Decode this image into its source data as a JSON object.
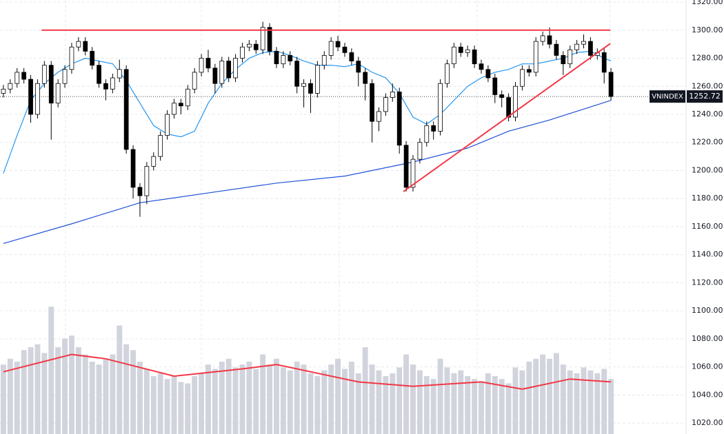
{
  "chart_data": {
    "type": "candlestick",
    "symbol": "VNINDEX",
    "open": [
      1255,
      1258,
      1262,
      1270,
      1265,
      1240,
      1262,
      1275,
      1248,
      1262,
      1272,
      1288,
      1292,
      1285,
      1275,
      1262,
      1258,
      1266,
      1272,
      1215,
      1188,
      1182,
      1203,
      1210,
      1225,
      1240,
      1248,
      1246,
      1258,
      1270,
      1280,
      1273,
      1262,
      1278,
      1266,
      1280,
      1288,
      1290,
      1286,
      1302,
      1285,
      1276,
      1282,
      1278,
      1260,
      1262,
      1255,
      1275,
      1282,
      1292,
      1288,
      1284,
      1278,
      1270,
      1262,
      1235,
      1242,
      1252,
      1256,
      1218,
      1188,
      1208,
      1220,
      1232,
      1228,
      1262,
      1276,
      1288,
      1284,
      1286,
      1276,
      1272,
      1266,
      1254,
      1252,
      1238,
      1260,
      1272,
      1270,
      1292,
      1296,
      1290,
      1282,
      1276,
      1286,
      1290,
      1292,
      1282,
      1284,
      1270
    ],
    "high": [
      1261,
      1265,
      1273,
      1273,
      1268,
      1265,
      1278,
      1278,
      1265,
      1275,
      1291,
      1295,
      1295,
      1288,
      1278,
      1265,
      1269,
      1279,
      1275,
      1218,
      1191,
      1206,
      1213,
      1228,
      1243,
      1251,
      1251,
      1261,
      1273,
      1283,
      1286,
      1276,
      1281,
      1281,
      1283,
      1291,
      1293,
      1293,
      1306,
      1305,
      1288,
      1285,
      1285,
      1281,
      1265,
      1265,
      1278,
      1285,
      1295,
      1296,
      1291,
      1287,
      1281,
      1273,
      1265,
      1245,
      1255,
      1262,
      1259,
      1221,
      1211,
      1223,
      1235,
      1235,
      1265,
      1279,
      1291,
      1291,
      1289,
      1289,
      1279,
      1275,
      1269,
      1257,
      1255,
      1263,
      1275,
      1275,
      1295,
      1299,
      1302,
      1293,
      1285,
      1289,
      1293,
      1297,
      1295,
      1287,
      1287,
      1273
    ],
    "low": [
      1252,
      1255,
      1259,
      1262,
      1234,
      1237,
      1259,
      1222,
      1245,
      1259,
      1269,
      1285,
      1282,
      1272,
      1259,
      1250,
      1255,
      1263,
      1212,
      1180,
      1167,
      1176,
      1200,
      1207,
      1222,
      1237,
      1240,
      1243,
      1255,
      1267,
      1270,
      1255,
      1259,
      1263,
      1263,
      1277,
      1285,
      1283,
      1283,
      1282,
      1273,
      1273,
      1275,
      1255,
      1245,
      1241,
      1252,
      1272,
      1279,
      1285,
      1281,
      1275,
      1260,
      1250,
      1220,
      1228,
      1239,
      1249,
      1212,
      1185,
      1185,
      1205,
      1217,
      1222,
      1225,
      1259,
      1273,
      1281,
      1281,
      1273,
      1269,
      1263,
      1248,
      1245,
      1235,
      1235,
      1257,
      1267,
      1267,
      1289,
      1287,
      1279,
      1268,
      1273,
      1283,
      1287,
      1279,
      1279,
      1262,
      1250
    ],
    "close": [
      1258,
      1262,
      1270,
      1265,
      1240,
      1262,
      1275,
      1248,
      1262,
      1272,
      1288,
      1292,
      1285,
      1275,
      1262,
      1258,
      1266,
      1272,
      1215,
      1188,
      1182,
      1203,
      1210,
      1225,
      1240,
      1248,
      1246,
      1258,
      1270,
      1280,
      1273,
      1262,
      1278,
      1266,
      1280,
      1288,
      1290,
      1286,
      1302,
      1285,
      1276,
      1282,
      1278,
      1260,
      1262,
      1255,
      1275,
      1282,
      1292,
      1288,
      1284,
      1278,
      1270,
      1262,
      1235,
      1242,
      1252,
      1256,
      1218,
      1188,
      1208,
      1220,
      1232,
      1228,
      1262,
      1276,
      1288,
      1284,
      1286,
      1276,
      1272,
      1266,
      1254,
      1252,
      1238,
      1260,
      1272,
      1270,
      1292,
      1296,
      1290,
      1282,
      1276,
      1286,
      1290,
      1292,
      1282,
      1284,
      1270,
      1252.72
    ],
    "up_color": "#ffffff",
    "down_color": "#000000",
    "moving_averages": [
      {
        "color": "#2196f3",
        "x": [
          0,
          2,
          4,
          6,
          8,
          10,
          12,
          14,
          16,
          18,
          20,
          22,
          24,
          26,
          28,
          30,
          32,
          34,
          36,
          38,
          40,
          42,
          44,
          46,
          48,
          50,
          52,
          54,
          56,
          58,
          60,
          62,
          64,
          66,
          68,
          70,
          72,
          74,
          76,
          78,
          80,
          82,
          84,
          86,
          88,
          89
        ],
        "values": [
          1198,
          1225,
          1250,
          1262,
          1270,
          1276,
          1280,
          1278,
          1276,
          1264,
          1248,
          1232,
          1226,
          1224,
          1228,
          1248,
          1262,
          1272,
          1280,
          1284,
          1285,
          1282,
          1278,
          1275,
          1275,
          1274,
          1276,
          1270,
          1266,
          1255,
          1238,
          1233,
          1240,
          1250,
          1260,
          1266,
          1270,
          1272,
          1276,
          1276,
          1278,
          1280,
          1284,
          1285,
          1280,
          1278
        ]
      },
      {
        "color": "#1e50d8",
        "x": [
          0,
          10,
          20,
          30,
          40,
          50,
          60,
          68,
          74,
          80,
          89
        ],
        "values": [
          1148,
          1162,
          1177,
          1184,
          1191,
          1196,
          1206,
          1216,
          1228,
          1236,
          1250
        ]
      }
    ],
    "volume": {
      "color": "#d1d4dc",
      "ylim": [
        0,
        300
      ],
      "values": [
        48,
        52,
        50,
        58,
        60,
        62,
        56,
        88,
        60,
        66,
        68,
        60,
        55,
        50,
        48,
        52,
        55,
        75,
        62,
        58,
        50,
        45,
        40,
        42,
        38,
        40,
        36,
        35,
        40,
        42,
        48,
        45,
        50,
        52,
        46,
        48,
        50,
        45,
        55,
        48,
        52,
        46,
        44,
        50,
        48,
        42,
        40,
        44,
        48,
        52,
        45,
        50,
        42,
        60,
        48,
        44,
        40,
        42,
        46,
        55,
        48,
        44,
        40,
        38,
        52,
        46,
        42,
        44,
        40,
        38,
        36,
        42,
        40,
        38,
        35,
        46,
        44,
        50,
        52,
        55,
        52,
        56,
        48,
        44,
        42,
        46,
        44,
        42,
        45,
        38
      ],
      "average": {
        "color": "#f23645",
        "x": [
          0,
          10,
          15,
          25,
          35,
          40,
          52,
          60,
          70,
          76,
          83,
          89
        ],
        "values": [
          43,
          55,
          52,
          40,
          45,
          48,
          36,
          33,
          36,
          31,
          38,
          36
        ]
      }
    },
    "trendlines": [
      {
        "color": "#f23645",
        "x": [
          5.6,
          88.9
        ],
        "y": [
          1300,
          1300
        ]
      },
      {
        "color": "#f23645",
        "x": [
          58.6,
          88.9
        ],
        "y": [
          1185,
          1290.5
        ]
      }
    ],
    "xlim": [
      -0.5,
      100
    ],
    "ylim": [
      1012.2,
      1321.5
    ],
    "yticks": [
      {
        "value": 1020,
        "label": "1020.00"
      },
      {
        "value": 1040,
        "label": "1040.00"
      },
      {
        "value": 1060,
        "label": "1060.00"
      },
      {
        "value": 1080,
        "label": "1080.00"
      },
      {
        "value": 1100,
        "label": "1100.00"
      },
      {
        "value": 1120,
        "label": "1120.00"
      },
      {
        "value": 1140,
        "label": "1140.00"
      },
      {
        "value": 1160,
        "label": "1160.00"
      },
      {
        "value": 1180,
        "label": "1180.00"
      },
      {
        "value": 1200,
        "label": "1200.00"
      },
      {
        "value": 1220,
        "label": "1220.00"
      },
      {
        "value": 1240,
        "label": "1240.00"
      },
      {
        "value": 1260,
        "label": "1260.00"
      },
      {
        "value": 1280,
        "label": "1280.00"
      },
      {
        "value": 1300,
        "label": "1300.00"
      },
      {
        "value": 1320,
        "label": "1320.00"
      }
    ],
    "grid": true
  }
}
